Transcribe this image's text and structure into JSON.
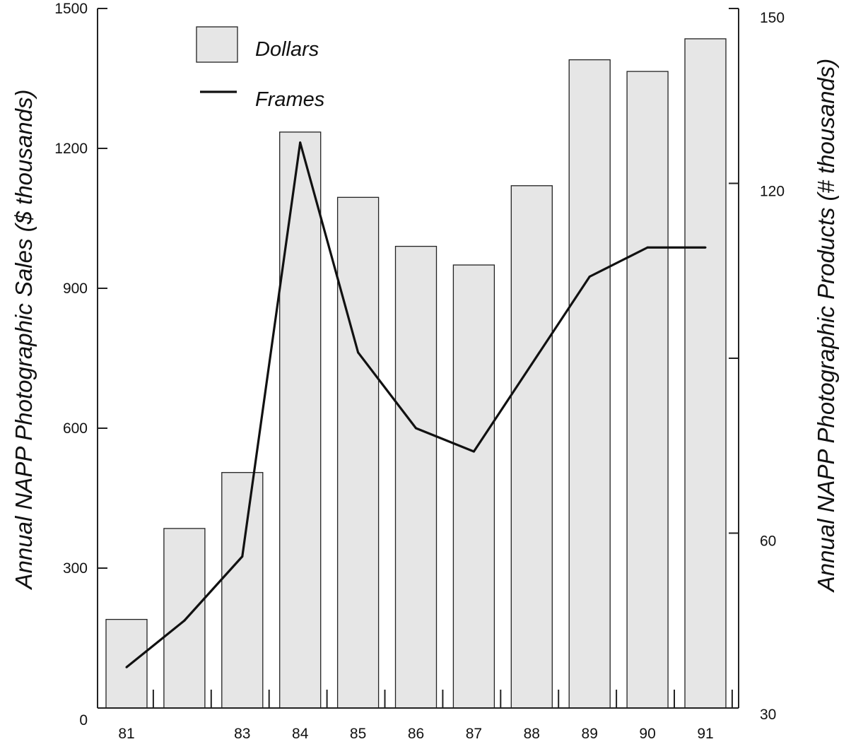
{
  "chart_data": {
    "type": "bar",
    "categories": [
      "81",
      "",
      "83",
      "84",
      "85",
      "86",
      "87",
      "88",
      "89",
      "90",
      "91"
    ],
    "series": [
      {
        "name": "Dollars",
        "type": "bar",
        "axis": "left",
        "values": [
          190,
          385,
          505,
          1235,
          1095,
          990,
          950,
          1120,
          1390,
          1365,
          1435
        ]
      },
      {
        "name": "Frames",
        "type": "line",
        "axis": "right",
        "values": [
          37,
          45,
          56,
          127,
          91,
          78,
          74,
          89,
          104,
          109,
          109
        ]
      }
    ],
    "ylabel": "Annual NAPP Photographic Sales ($ thousands)",
    "y2label": "Annual NAPP Photographic Products (# thousands)",
    "ylim": [
      0,
      1500
    ],
    "y2lim": [
      30,
      150
    ],
    "yticks": [
      0,
      300,
      600,
      900,
      1200,
      1500
    ],
    "y2ticks": [
      30,
      60,
      90,
      120,
      150
    ],
    "y2tick_labels": [
      "30",
      "60",
      "",
      "120",
      "150"
    ],
    "legend_position": "top-left",
    "grid": false,
    "colors": {
      "bar_fill": "#e6e6e6",
      "bar_stroke": "#222222",
      "line": "#111111",
      "axis": "#222222"
    }
  }
}
